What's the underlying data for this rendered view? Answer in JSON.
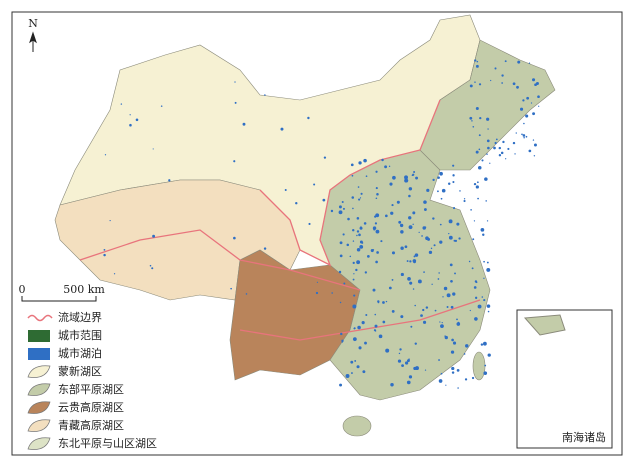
{
  "compass": "N",
  "scale_bar": {
    "start": "0",
    "end": "500 km"
  },
  "legend": [
    {
      "label": "流域边界",
      "color": "#e8747c"
    },
    {
      "label": "城市范围",
      "color": "#2e6b33"
    },
    {
      "label": "城市湖泊",
      "color": "#2f6fc4"
    },
    {
      "label": "蒙新湖区",
      "color": "#f6f1d3"
    },
    {
      "label": "东部平原湖区",
      "color": "#c3cca9"
    },
    {
      "label": "云贵高原湖区",
      "color": "#b9845b"
    },
    {
      "label": "青藏高原湖区",
      "color": "#f3dfbf"
    },
    {
      "label": "东北平原与山区湖区",
      "color": "#dde3c6"
    }
  ],
  "inset": {
    "label": "南海诸岛"
  }
}
